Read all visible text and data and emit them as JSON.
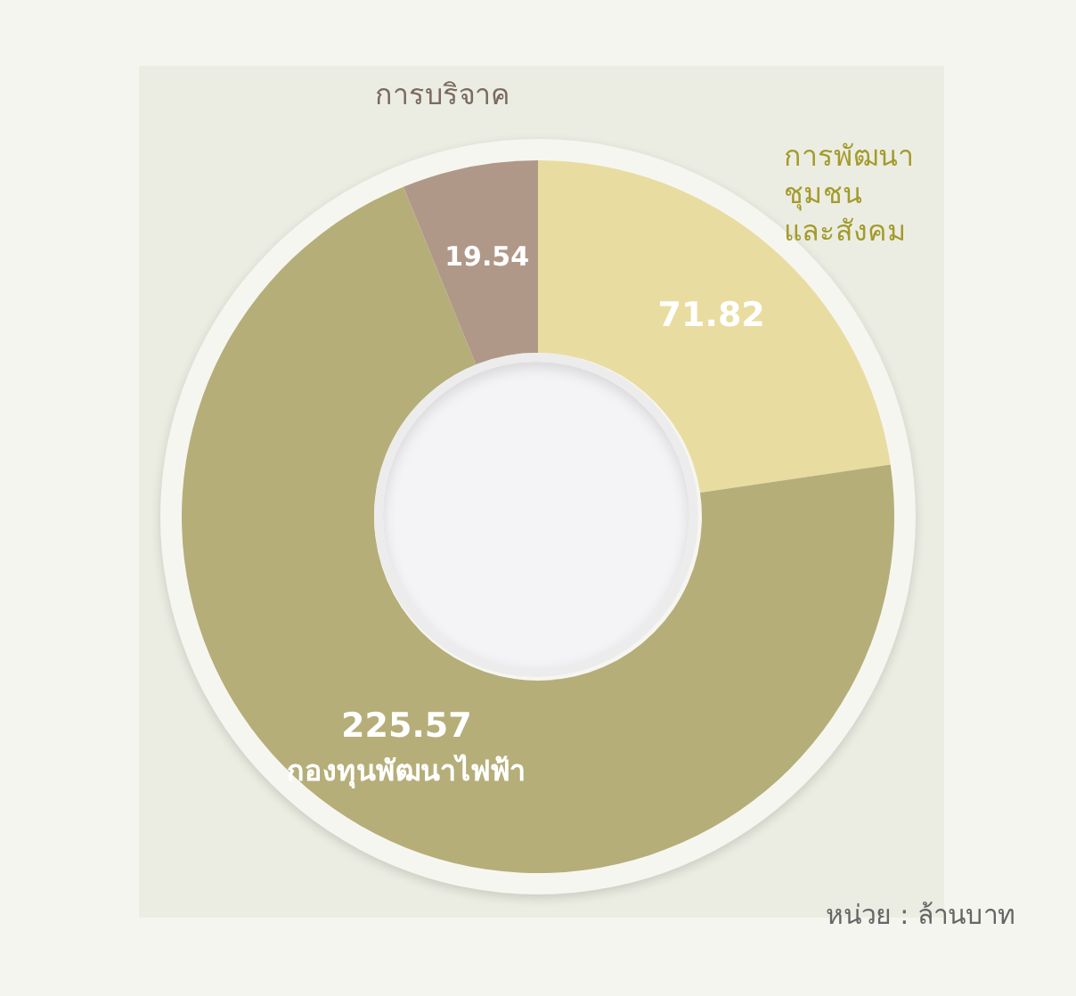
{
  "chart_data": {
    "type": "donut",
    "categories": [
      "การพัฒนา\nชุมชน\nและสังคม",
      "กองทุนพัฒนาไฟฟ้า",
      "การบริจาค"
    ],
    "values": [
      71.82,
      225.57,
      19.54
    ],
    "colors": [
      "#e9dca0",
      "#b5ae79",
      "#b09888"
    ],
    "data_labels": true,
    "legend": false,
    "annotations": [
      "หน่วย : ล้านบาท"
    ]
  }
}
